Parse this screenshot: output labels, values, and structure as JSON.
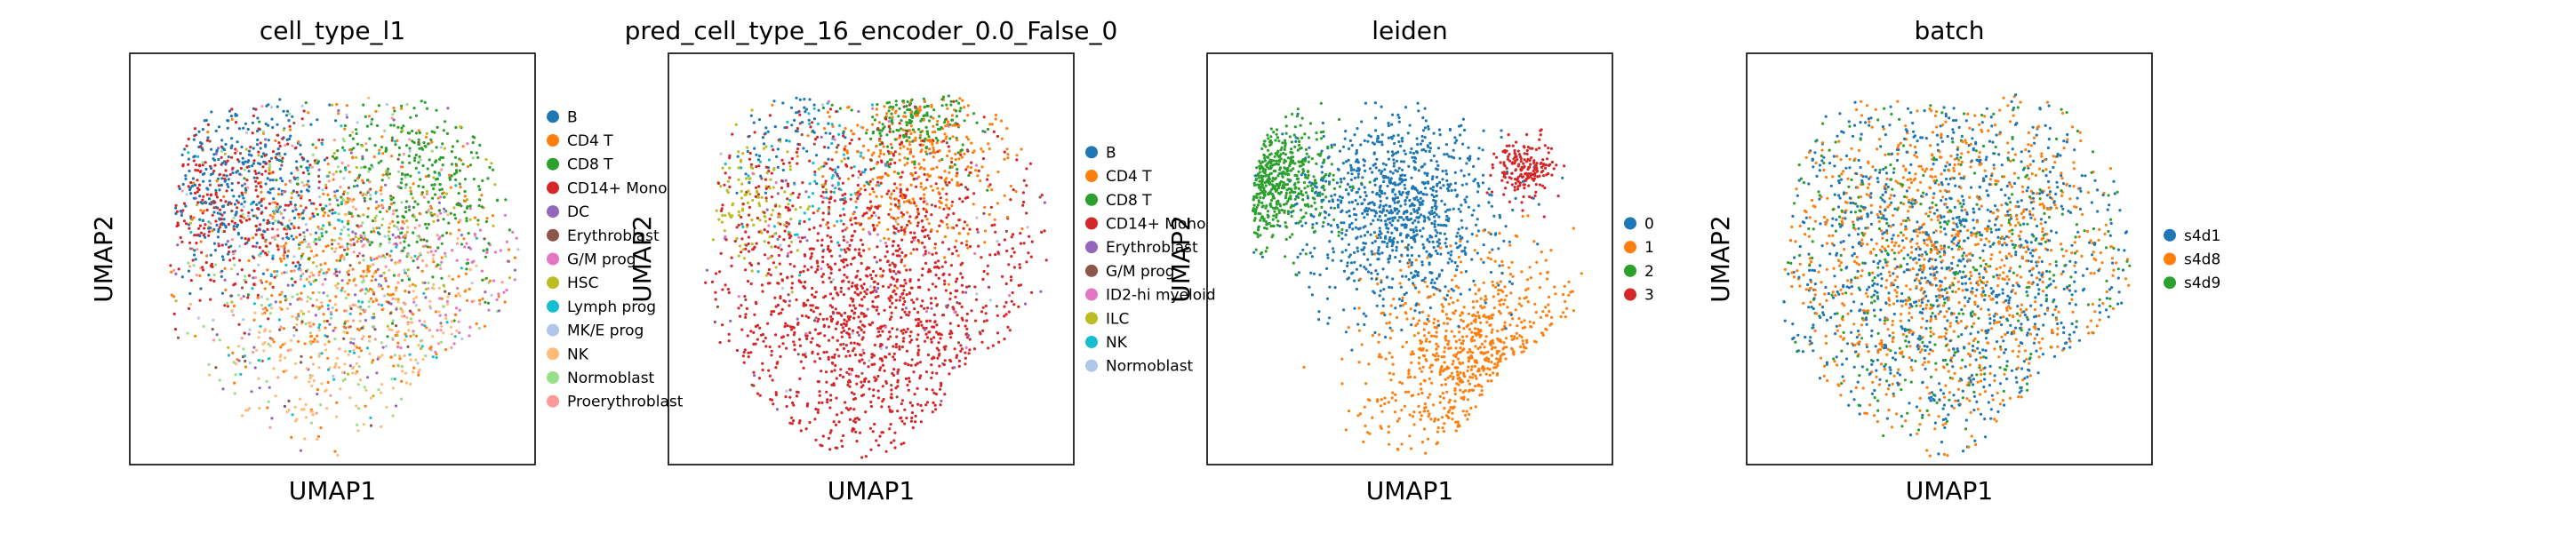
{
  "chart_data": [
    {
      "type": "scatter",
      "title": "cell_type_l1",
      "xlabel": "UMAP1",
      "ylabel": "UMAP2",
      "grid": false,
      "legend_placement": "right-outside",
      "point_count": 2400,
      "shape": "blob",
      "categories": [
        {
          "name": "B",
          "color": "#1f77b4"
        },
        {
          "name": "CD4 T",
          "color": "#ff7f0e"
        },
        {
          "name": "CD8 T",
          "color": "#2ca02c"
        },
        {
          "name": "CD14+ Mono",
          "color": "#d62728"
        },
        {
          "name": "DC",
          "color": "#9467bd"
        },
        {
          "name": "Erythroblast",
          "color": "#8c564b"
        },
        {
          "name": "G/M prog",
          "color": "#e377c2"
        },
        {
          "name": "HSC",
          "color": "#bcbd22"
        },
        {
          "name": "Lymph prog",
          "color": "#17becf"
        },
        {
          "name": "MK/E prog",
          "color": "#aec7e8"
        },
        {
          "name": "NK",
          "color": "#ffbb78"
        },
        {
          "name": "Normoblast",
          "color": "#98df8a"
        },
        {
          "name": "Proerythroblast",
          "color": "#ff9896"
        }
      ],
      "regions": [
        {
          "category": "B",
          "cx": 0.25,
          "cy": 0.7,
          "spread": 0.22,
          "weight": 0.14
        },
        {
          "category": "CD4 T",
          "cx": 0.55,
          "cy": 0.5,
          "spread": 0.35,
          "weight": 0.16
        },
        {
          "category": "CD8 T",
          "cx": 0.7,
          "cy": 0.7,
          "spread": 0.25,
          "weight": 0.13
        },
        {
          "category": "CD14+ Mono",
          "cx": 0.25,
          "cy": 0.62,
          "spread": 0.22,
          "weight": 0.11
        },
        {
          "category": "DC",
          "cx": 0.5,
          "cy": 0.5,
          "spread": 0.4,
          "weight": 0.05
        },
        {
          "category": "Erythroblast",
          "cx": 0.5,
          "cy": 0.5,
          "spread": 0.4,
          "weight": 0.04
        },
        {
          "category": "G/M prog",
          "cx": 0.8,
          "cy": 0.45,
          "spread": 0.25,
          "weight": 0.04
        },
        {
          "category": "HSC",
          "cx": 0.6,
          "cy": 0.55,
          "spread": 0.35,
          "weight": 0.04
        },
        {
          "category": "Lymph prog",
          "cx": 0.5,
          "cy": 0.45,
          "spread": 0.35,
          "weight": 0.04
        },
        {
          "category": "MK/E prog",
          "cx": 0.5,
          "cy": 0.5,
          "spread": 0.4,
          "weight": 0.03
        },
        {
          "category": "NK",
          "cx": 0.6,
          "cy": 0.3,
          "spread": 0.3,
          "weight": 0.1
        },
        {
          "category": "Normoblast",
          "cx": 0.5,
          "cy": 0.5,
          "spread": 0.4,
          "weight": 0.06
        },
        {
          "category": "Proerythroblast",
          "cx": 0.5,
          "cy": 0.5,
          "spread": 0.4,
          "weight": 0.06
        }
      ]
    },
    {
      "type": "scatter",
      "title": "pred_cell_type_16_encoder_0.0_False_0",
      "xlabel": "UMAP1",
      "ylabel": "UMAP2",
      "grid": false,
      "legend_placement": "right-outside",
      "point_count": 2400,
      "shape": "blob",
      "categories": [
        {
          "name": "B",
          "color": "#1f77b4"
        },
        {
          "name": "CD4 T",
          "color": "#ff7f0e"
        },
        {
          "name": "CD8 T",
          "color": "#2ca02c"
        },
        {
          "name": "CD14+ Mono",
          "color": "#d62728"
        },
        {
          "name": "Erythroblast",
          "color": "#9467bd"
        },
        {
          "name": "G/M prog",
          "color": "#8c564b"
        },
        {
          "name": "ID2-hi myeloid",
          "color": "#e377c2"
        },
        {
          "name": "ILC",
          "color": "#bcbd22"
        },
        {
          "name": "NK",
          "color": "#17becf"
        },
        {
          "name": "Normoblast",
          "color": "#aec7e8"
        }
      ],
      "regions": [
        {
          "category": "CD14+ Mono",
          "cx": 0.5,
          "cy": 0.38,
          "spread": 0.42,
          "weight": 0.6
        },
        {
          "category": "CD4 T",
          "cx": 0.62,
          "cy": 0.75,
          "spread": 0.22,
          "weight": 0.15
        },
        {
          "category": "CD8 T",
          "cx": 0.6,
          "cy": 0.88,
          "spread": 0.15,
          "weight": 0.07
        },
        {
          "category": "ILC",
          "cx": 0.2,
          "cy": 0.65,
          "spread": 0.15,
          "weight": 0.05
        },
        {
          "category": "B",
          "cx": 0.3,
          "cy": 0.8,
          "spread": 0.15,
          "weight": 0.03
        },
        {
          "category": "NK",
          "cx": 0.35,
          "cy": 0.7,
          "spread": 0.2,
          "weight": 0.03
        },
        {
          "category": "Erythroblast",
          "cx": 0.5,
          "cy": 0.5,
          "spread": 0.4,
          "weight": 0.02
        },
        {
          "category": "G/M prog",
          "cx": 0.5,
          "cy": 0.5,
          "spread": 0.4,
          "weight": 0.02
        },
        {
          "category": "ID2-hi myeloid",
          "cx": 0.5,
          "cy": 0.5,
          "spread": 0.4,
          "weight": 0.02
        },
        {
          "category": "Normoblast",
          "cx": 0.5,
          "cy": 0.5,
          "spread": 0.4,
          "weight": 0.01
        }
      ]
    },
    {
      "type": "scatter",
      "title": "leiden",
      "xlabel": "UMAP1",
      "ylabel": "UMAP2",
      "grid": false,
      "legend_placement": "right-outside",
      "point_count": 2400,
      "shape": "blob",
      "categories": [
        {
          "name": "0",
          "color": "#1f77b4"
        },
        {
          "name": "1",
          "color": "#ff7f0e"
        },
        {
          "name": "2",
          "color": "#2ca02c"
        },
        {
          "name": "3",
          "color": "#d62728"
        }
      ],
      "regions": [
        {
          "category": "0",
          "cx": 0.48,
          "cy": 0.62,
          "spread": 0.22,
          "weight": 0.42
        },
        {
          "category": "1",
          "cx": 0.68,
          "cy": 0.25,
          "spread": 0.24,
          "weight": 0.3
        },
        {
          "category": "2",
          "cx": 0.14,
          "cy": 0.7,
          "spread": 0.14,
          "weight": 0.2
        },
        {
          "category": "3",
          "cx": 0.78,
          "cy": 0.72,
          "spread": 0.07,
          "weight": 0.08
        }
      ]
    },
    {
      "type": "scatter",
      "title": "batch",
      "xlabel": "UMAP1",
      "ylabel": "UMAP2",
      "grid": false,
      "legend_placement": "right-outside",
      "point_count": 2400,
      "shape": "blob",
      "categories": [
        {
          "name": "s4d1",
          "color": "#1f77b4"
        },
        {
          "name": "s4d8",
          "color": "#ff7f0e"
        },
        {
          "name": "s4d9",
          "color": "#2ca02c"
        }
      ],
      "regions": [
        {
          "category": "s4d1",
          "cx": 0.5,
          "cy": 0.5,
          "spread": 0.45,
          "weight": 0.45
        },
        {
          "category": "s4d8",
          "cx": 0.5,
          "cy": 0.5,
          "spread": 0.45,
          "weight": 0.4
        },
        {
          "category": "s4d9",
          "cx": 0.5,
          "cy": 0.5,
          "spread": 0.45,
          "weight": 0.15
        }
      ]
    }
  ]
}
